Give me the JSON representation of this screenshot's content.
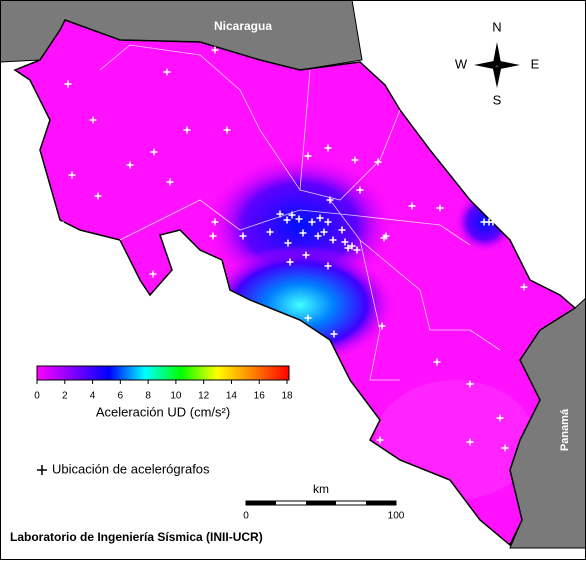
{
  "map": {
    "labels": {
      "nicaragua": "Nicaragua",
      "panama": "Panamá"
    },
    "compass": {
      "n": "N",
      "s": "S",
      "e": "E",
      "w": "W"
    },
    "colorbar": {
      "label": "Aceleración UD (cm/s²)",
      "lim": [
        0,
        18
      ],
      "ticks": [
        0,
        2,
        4,
        6,
        8,
        10,
        12,
        14,
        16,
        18
      ],
      "colors": [
        "#ff00ff",
        "#8000ff",
        "#0000ff",
        "#00ffff",
        "#00ff00",
        "#ffff00",
        "#ff8000",
        "#ff0000"
      ]
    },
    "legend": "Ubicación de acelerógrafos",
    "scale_bar": {
      "unit": "km",
      "ticks": [
        0,
        100
      ]
    },
    "credit": "Laboratorio de Ingeniería Sísmica (INII-UCR)"
  }
}
